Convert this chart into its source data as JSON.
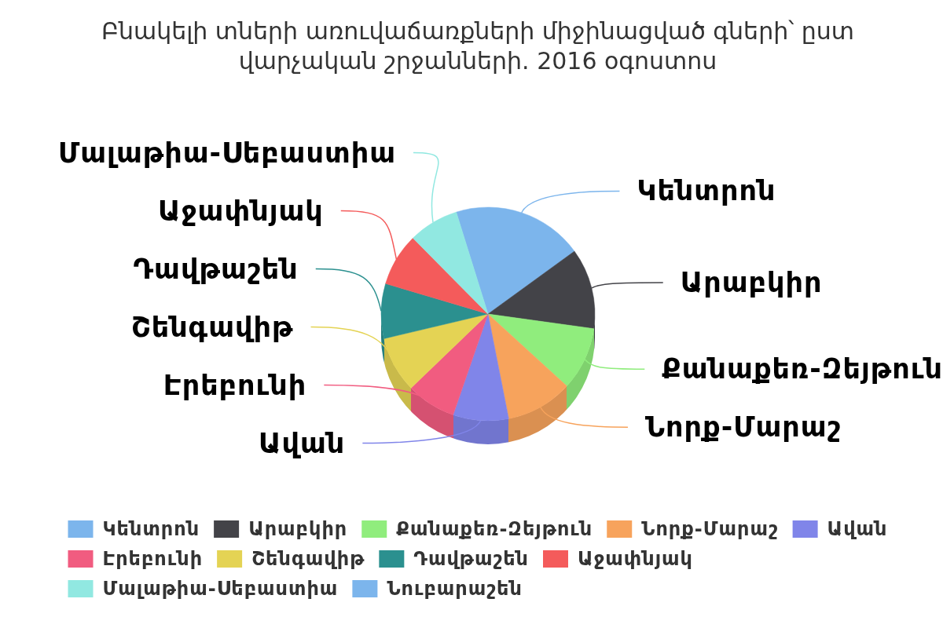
{
  "chart_data": {
    "type": "pie",
    "title": "Բնակելի տների առուվաճառքների միջինացված գների՝ ըստ վարչական շրջանների. 2016 օգոստոս",
    "categories": [
      "Կենտրոն",
      "Արաբկիր",
      "Քանաքեռ-Զեյթուն",
      "Նորք-Մարաշ",
      "Ավան",
      "Էրեբունի",
      "Շենգավիթ",
      "Դավթաշեն",
      "Աջափնյակ",
      "Մալաթիա-Սեբաստիա",
      "Նուբարաշեն"
    ],
    "values": [
      19.8,
      12.2,
      9.6,
      10.1,
      8.4,
      7.5,
      8.5,
      8.3,
      8.0,
      7.6,
      0
    ],
    "colors": [
      "#7cb5ec",
      "#434348",
      "#90ed7d",
      "#f7a35c",
      "#8085e9",
      "#f15c80",
      "#e4d354",
      "#2b908f",
      "#f45b5b",
      "#91e8e1",
      "#7cb5ec"
    ],
    "legend": "bottom"
  }
}
